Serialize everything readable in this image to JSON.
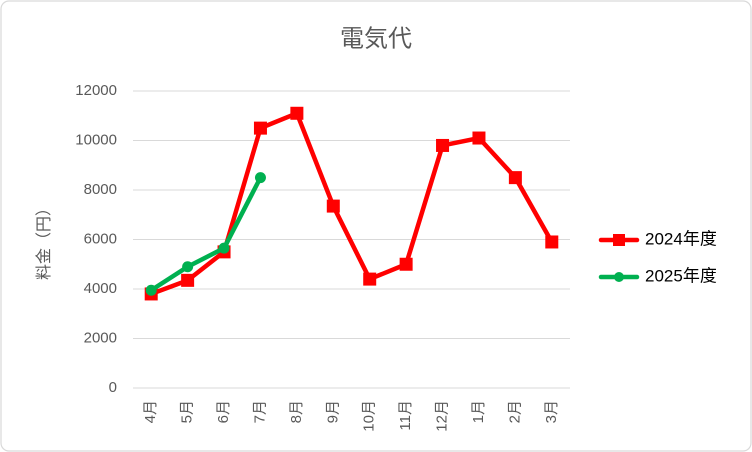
{
  "chart_data": {
    "type": "line",
    "title": "電気代",
    "xlabel": "",
    "ylabel": "料金（円）",
    "categories": [
      "4月",
      "5月",
      "6月",
      "7月",
      "8月",
      "9月",
      "10月",
      "11月",
      "12月",
      "1月",
      "2月",
      "3月"
    ],
    "ylim": [
      0,
      12000
    ],
    "yticks": [
      0,
      2000,
      4000,
      6000,
      8000,
      10000,
      12000
    ],
    "grid": true,
    "legend": "right",
    "series": [
      {
        "name": "2024年度",
        "color": "#FF0000",
        "marker": "square",
        "values": [
          3800,
          4350,
          5500,
          10500,
          11100,
          7350,
          4400,
          5000,
          9800,
          10100,
          8500,
          5900
        ]
      },
      {
        "name": "2025年度",
        "color": "#00B050",
        "marker": "circle",
        "values": [
          3950,
          4900,
          5650,
          8500,
          null,
          null,
          null,
          null,
          null,
          null,
          null,
          null
        ]
      }
    ]
  },
  "colors": {
    "text": "#595959",
    "grid": "#D9D9D9",
    "border": "#D9D9D9"
  }
}
